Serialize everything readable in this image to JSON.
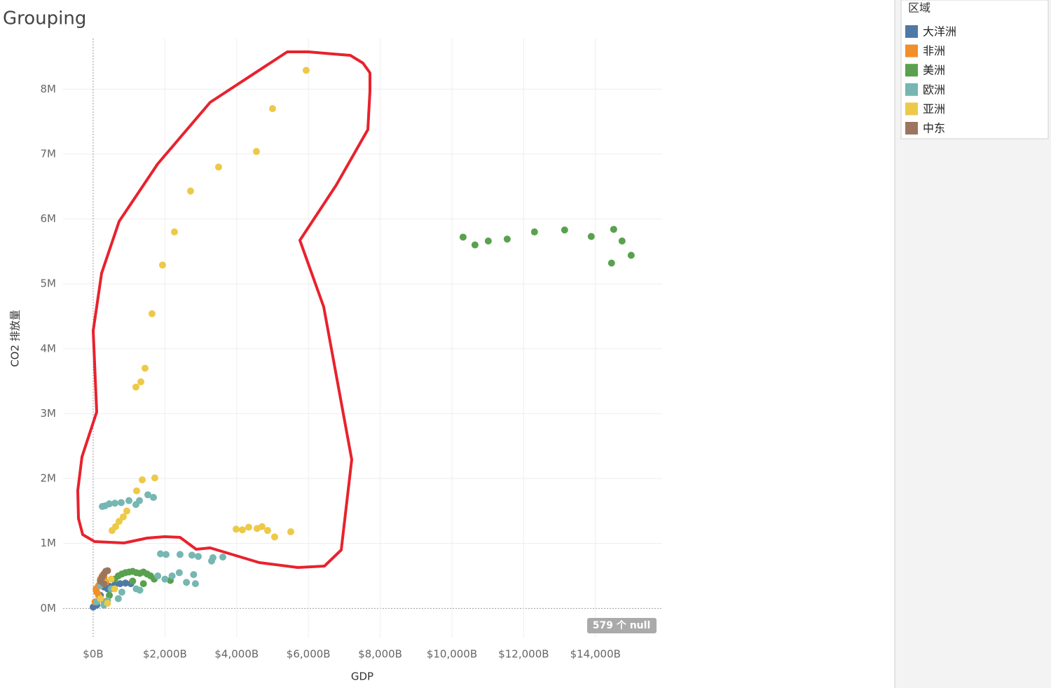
{
  "title": "Grouping",
  "legend": {
    "title": "区域"
  },
  "null_badge": "579 个 null",
  "chart_data": {
    "type": "scatter",
    "x_label": "GDP",
    "y_label": "CO2 排放量",
    "xlim": [
      -840,
      15860
    ],
    "ylim": [
      -450000,
      8780000
    ],
    "xticks": [
      {
        "value": 0,
        "label": "$0B"
      },
      {
        "value": 2000,
        "label": "$2,000B"
      },
      {
        "value": 4000,
        "label": "$4,000B"
      },
      {
        "value": 6000,
        "label": "$6,000B"
      },
      {
        "value": 8000,
        "label": "$8,000B"
      },
      {
        "value": 10000,
        "label": "$10,000B"
      },
      {
        "value": 12000,
        "label": "$12,000B"
      },
      {
        "value": 14000,
        "label": "$14,000B"
      }
    ],
    "yticks": [
      {
        "value": 0,
        "label": "0M"
      },
      {
        "value": 1000000,
        "label": "1M"
      },
      {
        "value": 2000000,
        "label": "2M"
      },
      {
        "value": 3000000,
        "label": "3M"
      },
      {
        "value": 4000000,
        "label": "4M"
      },
      {
        "value": 5000000,
        "label": "5M"
      },
      {
        "value": 6000000,
        "label": "6M"
      },
      {
        "value": 7000000,
        "label": "7M"
      },
      {
        "value": 8000000,
        "label": "8M"
      }
    ],
    "grid": true,
    "series": [
      {
        "name": "大洋洲",
        "color": "#4e79a7",
        "x": [
          0,
          100,
          200,
          300,
          450,
          600,
          750,
          900,
          1050,
          400
        ],
        "values": [
          20000,
          50000,
          200000,
          330000,
          340000,
          360000,
          380000,
          390000,
          380000,
          300000
        ]
      },
      {
        "name": "非洲",
        "color": "#f28e2b",
        "x": [
          50,
          100,
          150,
          200,
          250,
          300,
          350,
          150,
          300,
          80
        ],
        "values": [
          100000,
          250000,
          350000,
          450000,
          500000,
          480000,
          400000,
          200000,
          100000,
          300000
        ]
      },
      {
        "name": "美洲",
        "color": "#59a14f",
        "x": [
          10311,
          10643,
          11013,
          11541,
          12302,
          13142,
          13884,
          14509,
          14743,
          14450,
          14997,
          700,
          800,
          900,
          1000,
          1100,
          1200,
          1300,
          1400,
          1500,
          1600,
          1700,
          600,
          1100,
          1400,
          200,
          450,
          2150
        ],
        "values": [
          5720000,
          5600000,
          5660000,
          5690000,
          5800000,
          5830000,
          5730000,
          5840000,
          5660000,
          5320000,
          5440000,
          500000,
          530000,
          550000,
          560000,
          570000,
          550000,
          540000,
          560000,
          530000,
          500000,
          450000,
          450000,
          420000,
          380000,
          150000,
          200000,
          430000
        ]
      },
      {
        "name": "欧洲",
        "color": "#76b7b2",
        "x": [
          254,
          332,
          449,
          605,
          781,
          996,
          1191,
          1289,
          1523,
          1679,
          1875,
          2031,
          2421,
          2753,
          2929,
          3339,
          3613,
          1800,
          2000,
          2200,
          2400,
          2600,
          2800,
          2850,
          500,
          800,
          1200,
          1300,
          400,
          700,
          100,
          200,
          300,
          3300
        ],
        "values": [
          1570000,
          1580000,
          1610000,
          1620000,
          1630000,
          1660000,
          1600000,
          1660000,
          1750000,
          1710000,
          840000,
          830000,
          830000,
          820000,
          800000,
          780000,
          790000,
          500000,
          450000,
          500000,
          550000,
          400000,
          520000,
          380000,
          300000,
          250000,
          300000,
          280000,
          120000,
          150000,
          100000,
          350000,
          50000,
          730000
        ]
      },
      {
        "name": "亚洲",
        "color": "#edc948",
        "x": [
          5936,
          5000,
          4550,
          3495,
          2714,
          2265,
          1933,
          1640,
          1445,
          1328,
          1191,
          1718,
          1367,
          1211,
          937,
          840,
          722,
          625,
          527,
          3984,
          4159,
          4335,
          4569,
          4706,
          4862,
          5058,
          5507,
          300,
          500,
          200,
          400,
          600
        ],
        "values": [
          8290000,
          7700000,
          7040000,
          6800000,
          6430000,
          5800000,
          5290000,
          4540000,
          3700000,
          3490000,
          3410000,
          2010000,
          1980000,
          1810000,
          1500000,
          1410000,
          1340000,
          1260000,
          1200000,
          1220000,
          1210000,
          1250000,
          1230000,
          1260000,
          1200000,
          1100000,
          1180000,
          400000,
          450000,
          150000,
          80000,
          300000
        ]
      },
      {
        "name": "中东",
        "color": "#9c755f",
        "x": [
          200,
          250,
          300,
          350,
          400,
          300
        ],
        "values": [
          420000,
          480000,
          530000,
          570000,
          580000,
          380000
        ]
      }
    ]
  }
}
